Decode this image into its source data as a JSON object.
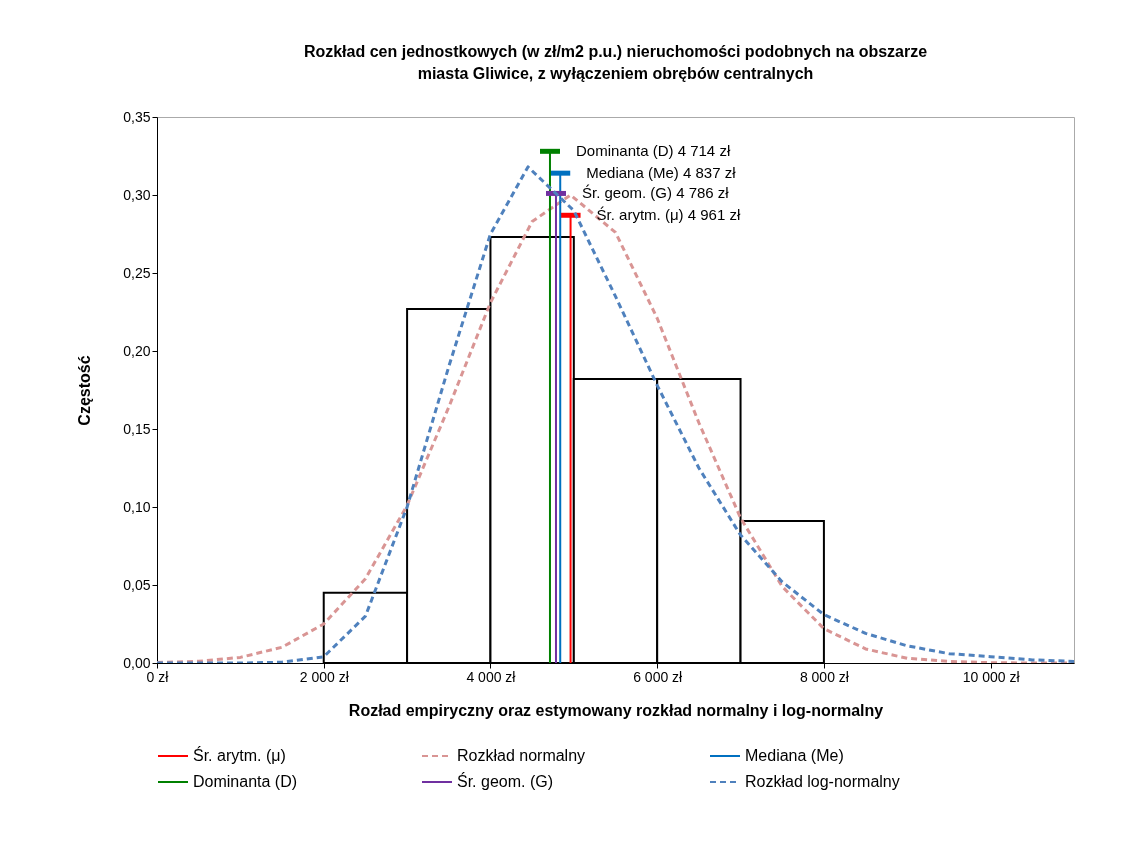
{
  "chart_data": {
    "type": "histogram",
    "title": "Rozkład cen jednostkowych (w zł/m2 p.u.) nieruchomości podobnych na obszarze\nmiasta Gliwice, z wyłączeniem obrębów centralnych",
    "xlabel": "Rozład empiryczny oraz estymowany rozkład normalny i log-normalny",
    "ylabel": "Częstość",
    "bins": [
      2000,
      3000,
      4000,
      5000,
      6000,
      7000,
      8000
    ],
    "values": [
      0.045,
      0.227,
      0.273,
      0.182,
      0.182,
      0.091
    ],
    "color": "#000000",
    "series": [
      {
        "name": "Śr. arytm. (μ)",
        "type": "line",
        "line_style": "solid",
        "color": "#ff0000",
        "x": [
          4961,
          4961
        ],
        "values": [
          0,
          0.287
        ]
      },
      {
        "name": "Rozkład normalny",
        "type": "line",
        "color": "#d99594",
        "line_style": "dashed",
        "x": [
          0,
          500,
          1000,
          1500,
          2000,
          2500,
          3000,
          3500,
          4000,
          4500,
          4961,
          5500,
          6000,
          6500,
          7000,
          7500,
          8000,
          8500,
          9000,
          9500,
          10000,
          10500,
          11000
        ],
        "values": [
          0.0003,
          0.0011,
          0.0036,
          0.0101,
          0.025,
          0.054,
          0.101,
          0.164,
          0.231,
          0.283,
          0.3,
          0.276,
          0.221,
          0.154,
          0.093,
          0.049,
          0.022,
          0.009,
          0.003,
          0.001,
          0.0002,
          0,
          0
        ]
      },
      {
        "name": "Mediana (Me)",
        "type": "line",
        "line_style": "solid",
        "color": "#0070c0",
        "x": [
          4837,
          4837
        ],
        "values": [
          0,
          0.314
        ]
      },
      {
        "name": "Dominanta (D)",
        "type": "line",
        "line_style": "solid",
        "color": "#008000",
        "x": [
          4714,
          4714
        ],
        "values": [
          0,
          0.328
        ]
      },
      {
        "name": "Śr. geom. (G)",
        "type": "line",
        "line_style": "solid",
        "color": "#7030a0",
        "x": [
          4786,
          4786
        ],
        "values": [
          0,
          0.301
        ]
      },
      {
        "name": "Rozkład log-normalny",
        "type": "line",
        "color": "#4f81bd",
        "line_style": "dashed",
        "x": [
          0,
          1000,
          1500,
          2000,
          2500,
          3000,
          3500,
          4000,
          4450,
          5000,
          5500,
          6000,
          6500,
          7000,
          7500,
          8000,
          8500,
          9000,
          9500,
          10000,
          10500,
          11000
        ],
        "values": [
          0,
          0,
          0.0005,
          0.004,
          0.03,
          0.1,
          0.19,
          0.275,
          0.318,
          0.29,
          0.235,
          0.178,
          0.125,
          0.082,
          0.052,
          0.031,
          0.019,
          0.011,
          0.006,
          0.004,
          0.002,
          0.001
        ]
      }
    ],
    "annotations": [
      {
        "text": "Dominanta (D) 4 714 zł",
        "x": 4714,
        "y": 0.328
      },
      {
        "text": "Mediana (Me) 4 837 zł",
        "x": 4837,
        "y": 0.314
      },
      {
        "text": "Śr. geom. (G) 4 786 zł",
        "x": 4786,
        "y": 0.301
      },
      {
        "text": "Śr. arytm. (μ) 4 961 zł",
        "x": 4961,
        "y": 0.287
      }
    ],
    "xlim": [
      0,
      11000
    ],
    "xticks": [
      {
        "value": 0,
        "label": "0 zł"
      },
      {
        "value": 2000,
        "label": "2 000 zł"
      },
      {
        "value": 4000,
        "label": "4 000 zł"
      },
      {
        "value": 6000,
        "label": "6 000 zł"
      },
      {
        "value": 8000,
        "label": "8 000 zł"
      },
      {
        "value": 10000,
        "label": "10 000 zł"
      }
    ],
    "ylim": [
      0,
      0.35
    ],
    "yticks": [
      {
        "value": 0,
        "label": "0,00"
      },
      {
        "value": 0.05,
        "label": "0,05"
      },
      {
        "value": 0.1,
        "label": "0,10"
      },
      {
        "value": 0.15,
        "label": "0,15"
      },
      {
        "value": 0.2,
        "label": "0,20"
      },
      {
        "value": 0.25,
        "label": "0,25"
      },
      {
        "value": 0.3,
        "label": "0,30"
      },
      {
        "value": 0.35,
        "label": "0,35"
      }
    ],
    "grid": false,
    "legend": "bottom"
  }
}
